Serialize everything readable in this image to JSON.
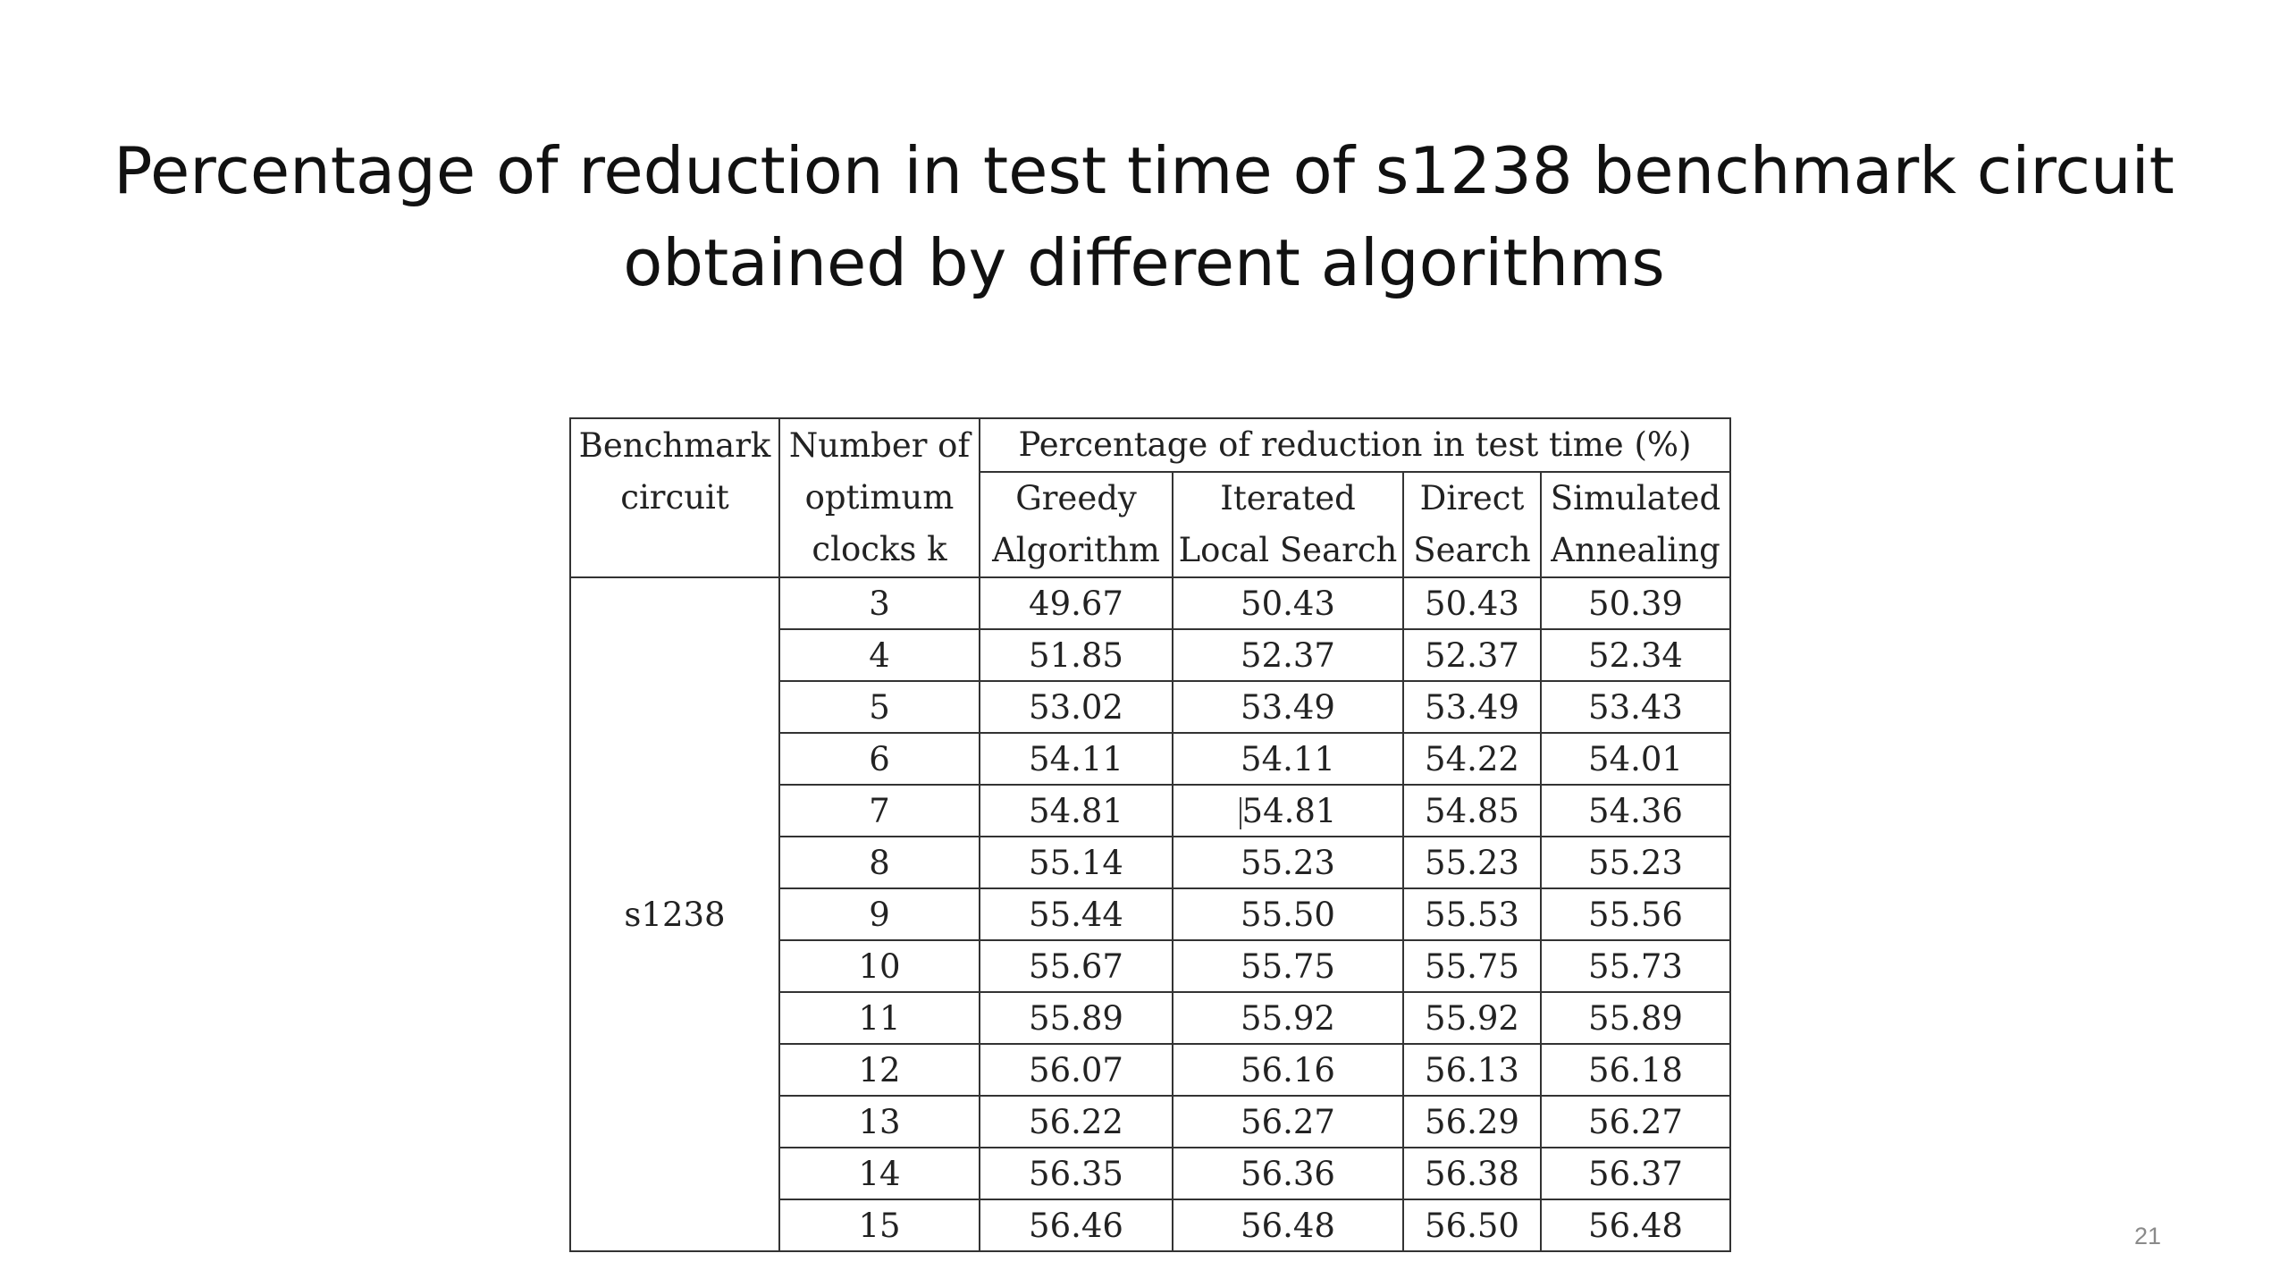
{
  "slide": {
    "title_line1": "Percentage of reduction in test time of s1238 benchmark circuit",
    "title_line2": "obtained by different algorithms",
    "page_number": "21"
  },
  "table": {
    "header": {
      "benchmark_line1": "Benchmark",
      "benchmark_line2": "circuit",
      "clocks_line1": "Number of",
      "clocks_line2": "optimum",
      "clocks_line3": "clocks k",
      "group_label": "Percentage of reduction in test time (%)",
      "col_greedy_line1": "Greedy",
      "col_greedy_line2": "Algorithm",
      "col_iterated_line1": "Iterated",
      "col_iterated_line2": "Local Search",
      "col_direct_line1": "Direct",
      "col_direct_line2": "Search",
      "col_annealing_line1": "Simulated",
      "col_annealing_line2": "Annealing"
    },
    "benchmark": "s1238",
    "rows": [
      {
        "k": "3",
        "greedy": "49.67",
        "iterated": "50.43",
        "direct": "50.43",
        "annealing": "50.39"
      },
      {
        "k": "4",
        "greedy": "51.85",
        "iterated": "52.37",
        "direct": "52.37",
        "annealing": "52.34"
      },
      {
        "k": "5",
        "greedy": "53.02",
        "iterated": "53.49",
        "direct": "53.49",
        "annealing": "53.43"
      },
      {
        "k": "6",
        "greedy": "54.11",
        "iterated": "54.11",
        "direct": "54.22",
        "annealing": "54.01"
      },
      {
        "k": "7",
        "greedy": "54.81",
        "iterated": "54.81",
        "direct": "54.85",
        "annealing": "54.36"
      },
      {
        "k": "8",
        "greedy": "55.14",
        "iterated": "55.23",
        "direct": "55.23",
        "annealing": "55.23"
      },
      {
        "k": "9",
        "greedy": "55.44",
        "iterated": "55.50",
        "direct": "55.53",
        "annealing": "55.56"
      },
      {
        "k": "10",
        "greedy": "55.67",
        "iterated": "55.75",
        "direct": "55.75",
        "annealing": "55.73"
      },
      {
        "k": "11",
        "greedy": "55.89",
        "iterated": "55.92",
        "direct": "55.92",
        "annealing": "55.89"
      },
      {
        "k": "12",
        "greedy": "56.07",
        "iterated": "56.16",
        "direct": "56.13",
        "annealing": "56.18"
      },
      {
        "k": "13",
        "greedy": "56.22",
        "iterated": "56.27",
        "direct": "56.29",
        "annealing": "56.27"
      },
      {
        "k": "14",
        "greedy": "56.35",
        "iterated": "56.36",
        "direct": "56.38",
        "annealing": "56.37"
      },
      {
        "k": "15",
        "greedy": "56.46",
        "iterated": "56.48",
        "direct": "56.50",
        "annealing": "56.48"
      }
    ]
  }
}
